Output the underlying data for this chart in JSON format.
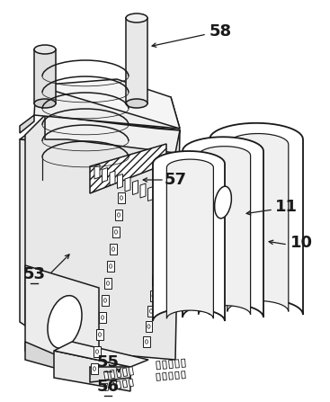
{
  "fig_width": 3.67,
  "fig_height": 4.47,
  "dpi": 100,
  "bg_color": "#ffffff",
  "line_color": "#1a1a1a",
  "line_width": 1.1
}
